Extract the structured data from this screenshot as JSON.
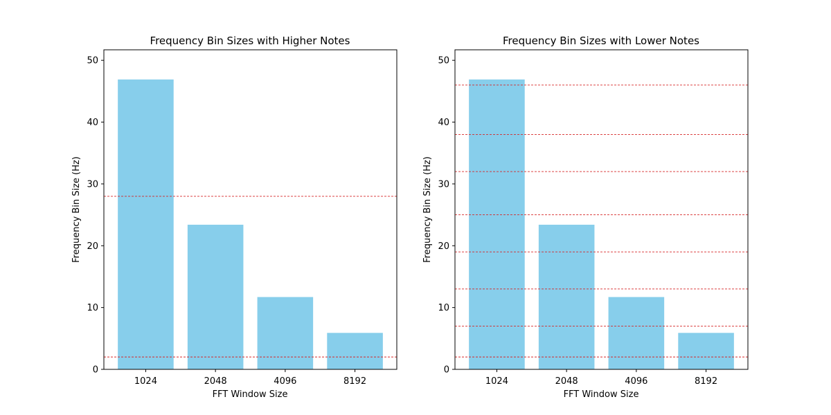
{
  "chart_data": [
    {
      "type": "bar",
      "title": "Frequency Bin Sizes with Higher Notes",
      "xlabel": "FFT Window Size",
      "ylabel": "Frequency Bin Size (Hz)",
      "categories": [
        "1024",
        "2048",
        "4096",
        "8192"
      ],
      "values": [
        46.9,
        23.4,
        11.7,
        5.9
      ],
      "ylim": [
        0,
        51.7
      ],
      "yticks": [
        0,
        10,
        20,
        30,
        40,
        50
      ],
      "bar_color": "#87ceeb",
      "reference_lines": [
        2,
        28
      ],
      "reference_line_color": "#d62728",
      "grid": false
    },
    {
      "type": "bar",
      "title": "Frequency Bin Sizes with Lower Notes",
      "xlabel": "FFT Window Size",
      "ylabel": "Frequency Bin Size (Hz)",
      "categories": [
        "1024",
        "2048",
        "4096",
        "8192"
      ],
      "values": [
        46.9,
        23.4,
        11.7,
        5.9
      ],
      "ylim": [
        0,
        51.7
      ],
      "yticks": [
        0,
        10,
        20,
        30,
        40,
        50
      ],
      "bar_color": "#87ceeb",
      "reference_lines": [
        2,
        7,
        13,
        19,
        25,
        32,
        38,
        46
      ],
      "reference_line_color": "#d62728",
      "grid": false
    }
  ]
}
